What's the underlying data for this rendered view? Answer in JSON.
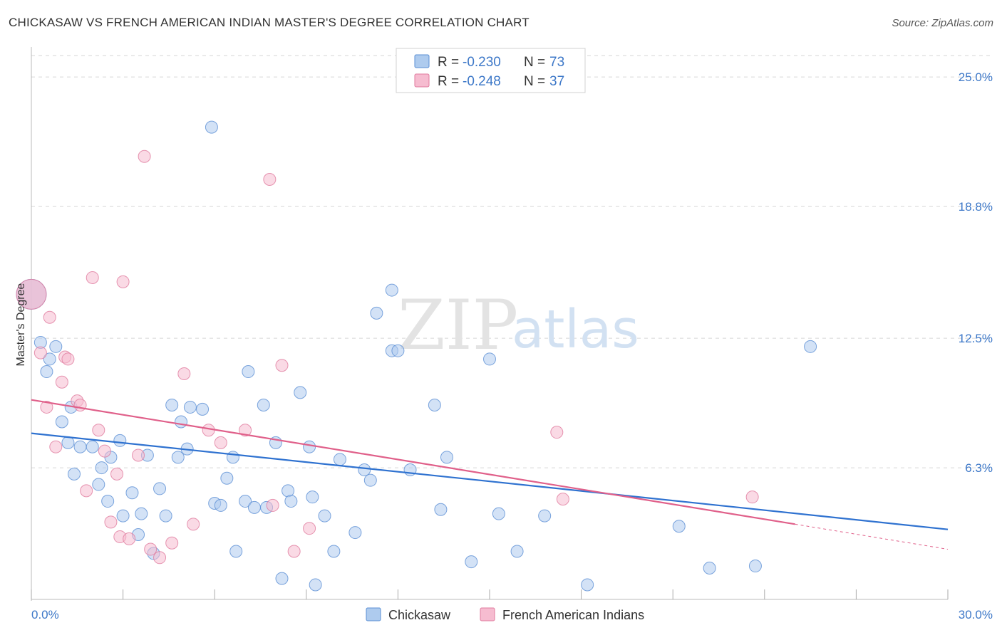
{
  "title": "CHICKASAW VS FRENCH AMERICAN INDIAN MASTER'S DEGREE CORRELATION CHART",
  "source": "Source: ZipAtlas.com",
  "watermark": {
    "a": "ZIP",
    "b": "atlas"
  },
  "colors": {
    "blue_fill": "#aecbee",
    "blue_stroke": "#5b8fd4",
    "blue_line": "#2f72d0",
    "pink_fill": "#f6bcd0",
    "pink_stroke": "#e07a9e",
    "pink_line": "#e0608a",
    "grid": "#d6d6d6",
    "axis_text": "#3d78c8"
  },
  "legend": {
    "rows": [
      {
        "series": "Chickasaw",
        "r_label": "R = ",
        "r_value": "-0.230",
        "n_label": "N = ",
        "n_value": "73"
      },
      {
        "series": "French American Indians",
        "r_label": "R = ",
        "r_value": "-0.248",
        "n_label": "N = ",
        "n_value": "37"
      }
    ]
  },
  "chart_data": {
    "type": "scatter",
    "title": "CHICKASAW VS FRENCH AMERICAN INDIAN MASTER'S DEGREE CORRELATION CHART",
    "xlabel": "",
    "ylabel": "Master's Degree",
    "xlim": [
      0,
      30
    ],
    "ylim": [
      0,
      26.3
    ],
    "x_tick_labels": [
      "0.0%",
      "30.0%"
    ],
    "y_ticks": [
      6.3,
      12.5,
      18.8,
      25.0
    ],
    "y_tick_labels": [
      "6.3%",
      "12.5%",
      "18.8%",
      "25.0%"
    ],
    "grid": true,
    "series": [
      {
        "name": "Chickasaw",
        "trend": {
          "x0": 0,
          "y0": 7.95,
          "x1": 30,
          "y1": 3.35
        },
        "points": [
          [
            0.3,
            12.3
          ],
          [
            0.6,
            11.5
          ],
          [
            0.5,
            10.9
          ],
          [
            0.8,
            12.1
          ],
          [
            1.0,
            8.5
          ],
          [
            1.3,
            9.2
          ],
          [
            1.2,
            7.5
          ],
          [
            1.6,
            7.3
          ],
          [
            1.4,
            6.0
          ],
          [
            2.0,
            7.3
          ],
          [
            2.2,
            5.5
          ],
          [
            2.3,
            6.3
          ],
          [
            2.6,
            6.8
          ],
          [
            2.5,
            4.7
          ],
          [
            2.9,
            7.6
          ],
          [
            3.0,
            4.0
          ],
          [
            3.3,
            5.1
          ],
          [
            3.5,
            3.1
          ],
          [
            3.6,
            4.1
          ],
          [
            3.8,
            6.9
          ],
          [
            4.0,
            2.2
          ],
          [
            4.2,
            5.3
          ],
          [
            4.4,
            4.0
          ],
          [
            4.6,
            9.3
          ],
          [
            4.8,
            6.8
          ],
          [
            4.9,
            8.5
          ],
          [
            5.1,
            7.2
          ],
          [
            5.2,
            9.2
          ],
          [
            5.6,
            9.1
          ],
          [
            5.9,
            22.6
          ],
          [
            6.0,
            4.6
          ],
          [
            6.2,
            4.5
          ],
          [
            6.4,
            5.8
          ],
          [
            6.6,
            6.8
          ],
          [
            6.7,
            2.3
          ],
          [
            7.0,
            4.7
          ],
          [
            7.1,
            10.9
          ],
          [
            7.3,
            4.4
          ],
          [
            7.6,
            9.3
          ],
          [
            7.7,
            4.4
          ],
          [
            8.0,
            7.5
          ],
          [
            8.2,
            1.0
          ],
          [
            8.4,
            5.2
          ],
          [
            8.5,
            4.7
          ],
          [
            8.8,
            9.9
          ],
          [
            9.1,
            7.3
          ],
          [
            9.2,
            4.9
          ],
          [
            9.3,
            0.7
          ],
          [
            9.6,
            4.0
          ],
          [
            9.9,
            2.3
          ],
          [
            10.1,
            6.7
          ],
          [
            10.6,
            3.2
          ],
          [
            10.9,
            6.2
          ],
          [
            11.1,
            5.7
          ],
          [
            11.3,
            13.7
          ],
          [
            11.8,
            14.8
          ],
          [
            11.8,
            11.9
          ],
          [
            12.0,
            11.9
          ],
          [
            12.4,
            6.2
          ],
          [
            13.2,
            9.3
          ],
          [
            13.4,
            4.3
          ],
          [
            13.6,
            6.8
          ],
          [
            14.4,
            1.8
          ],
          [
            15.0,
            11.5
          ],
          [
            15.3,
            4.1
          ],
          [
            15.9,
            2.3
          ],
          [
            16.8,
            4.0
          ],
          [
            18.2,
            0.7
          ],
          [
            21.2,
            3.5
          ],
          [
            22.2,
            1.5
          ],
          [
            23.7,
            1.6
          ],
          [
            25.5,
            12.1
          ],
          [
            0.0,
            14.6
          ]
        ]
      },
      {
        "name": "French American Indians",
        "trend": {
          "x0": 0,
          "y0": 9.55,
          "x1": 25,
          "y1": 3.6,
          "dash_to_x": 30,
          "dash_to_y": 2.4
        },
        "points": [
          [
            0.3,
            11.8
          ],
          [
            0.5,
            9.2
          ],
          [
            0.6,
            13.5
          ],
          [
            0.8,
            7.3
          ],
          [
            1.0,
            10.4
          ],
          [
            1.1,
            11.6
          ],
          [
            1.2,
            11.5
          ],
          [
            1.5,
            9.5
          ],
          [
            1.6,
            9.3
          ],
          [
            1.8,
            5.2
          ],
          [
            2.0,
            15.4
          ],
          [
            2.2,
            8.1
          ],
          [
            2.4,
            7.1
          ],
          [
            2.6,
            3.7
          ],
          [
            2.8,
            6.0
          ],
          [
            2.9,
            3.0
          ],
          [
            3.0,
            15.2
          ],
          [
            3.2,
            2.9
          ],
          [
            3.5,
            6.9
          ],
          [
            3.7,
            21.2
          ],
          [
            3.9,
            2.4
          ],
          [
            4.2,
            2.0
          ],
          [
            4.6,
            2.7
          ],
          [
            5.0,
            10.8
          ],
          [
            5.3,
            3.6
          ],
          [
            5.8,
            8.1
          ],
          [
            6.2,
            7.5
          ],
          [
            7.0,
            8.1
          ],
          [
            7.8,
            20.1
          ],
          [
            7.9,
            4.5
          ],
          [
            8.2,
            11.2
          ],
          [
            8.6,
            2.3
          ],
          [
            9.1,
            3.4
          ],
          [
            17.2,
            8.0
          ],
          [
            17.4,
            4.8
          ],
          [
            23.6,
            4.9
          ],
          [
            0.0,
            14.6
          ]
        ]
      }
    ]
  },
  "bottom_legend": {
    "items": [
      "Chickasaw",
      "French American Indians"
    ]
  }
}
